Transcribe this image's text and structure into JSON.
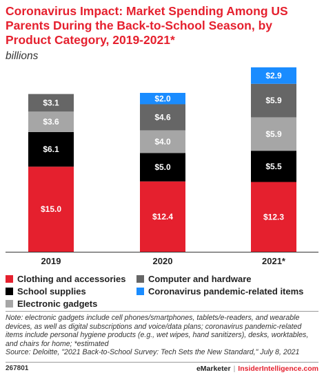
{
  "chart_data": {
    "type": "bar",
    "stacked": true,
    "title": "Coronavirus Impact: Market Spending Among US Parents During the Back-to-School Season, by Product Category, 2019-2021*",
    "subtitle": "billions",
    "categories": [
      "2019",
      "2020",
      "2021*"
    ],
    "series": [
      {
        "name": "Clothing and accessories",
        "color": "#e5202e",
        "values": [
          15.0,
          12.4,
          12.3
        ],
        "labels": [
          "$15.0",
          "$12.4",
          "$12.3"
        ]
      },
      {
        "name": "School supplies",
        "color": "#000000",
        "values": [
          6.1,
          5.0,
          5.5
        ],
        "labels": [
          "$6.1",
          "$5.0",
          "$5.5"
        ]
      },
      {
        "name": "Electronic gadgets",
        "color": "#a6a6a6",
        "values": [
          3.6,
          4.0,
          5.9
        ],
        "labels": [
          "$3.6",
          "$4.0",
          "$5.9"
        ]
      },
      {
        "name": "Computer and hardware",
        "color": "#666666",
        "values": [
          3.1,
          4.6,
          5.9
        ],
        "labels": [
          "$3.1",
          "$4.6",
          "$5.9"
        ]
      },
      {
        "name": "Coronavirus pandemic-related items",
        "color": "#1a8cff",
        "values": [
          0,
          2.0,
          2.9
        ],
        "labels": [
          "",
          "$2.0",
          "$2.9"
        ]
      }
    ],
    "legend_placement": "bottom",
    "grid": false
  },
  "note": "Note: electronic gadgets include cell phones/smartphones, tablets/e-readers, and wearable devices, as well as digital subscriptions and voice/data plans; coronavirus pandemic-related items include personal hygiene products (e.g., wet wipes, hand sanitizers), desks, worktables, and chairs for home; *estimated",
  "source": "Source: Deloitte, \"2021 Back-to-School Survey: Tech Sets the New Standard,\" July 8, 2021",
  "footer": {
    "chart_id": "267801",
    "brand_left": "eMarketer",
    "brand_sep": "|",
    "brand_right": "InsiderIntelligence.com"
  }
}
